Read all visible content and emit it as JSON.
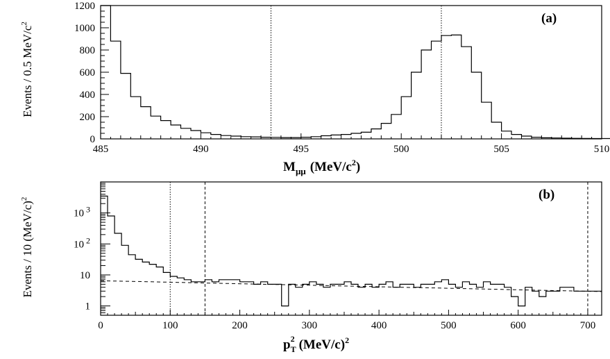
{
  "chart_data": [
    {
      "panel": "(a)",
      "type": "histogram",
      "xlabel": "M_μμ (MeV/c²)",
      "xlabel_main": "M",
      "xlabel_sub": "μμ",
      "xlabel_unit": "(MeV/c",
      "xlabel_sup": "2",
      "xlabel_close": ")",
      "ylabel": "Events / 0.5 MeV/c²",
      "ylabel_main": "Events / 0.5 MeV/c",
      "ylabel_sup": "2",
      "xlim": [
        485,
        510
      ],
      "ylim": [
        0,
        1200
      ],
      "xticks": [
        "485",
        "490",
        "495",
        "500",
        "505",
        "510"
      ],
      "yticks": [
        "0",
        "200",
        "400",
        "600",
        "800",
        "1000",
        "1200"
      ],
      "bin_width": 0.5,
      "bin_start": 485,
      "values": [
        1200,
        880,
        590,
        380,
        290,
        205,
        165,
        125,
        95,
        75,
        55,
        40,
        30,
        25,
        20,
        18,
        15,
        14,
        12,
        12,
        15,
        20,
        28,
        35,
        40,
        50,
        60,
        90,
        140,
        220,
        380,
        600,
        800,
        880,
        930,
        935,
        830,
        600,
        330,
        150,
        70,
        40,
        25,
        15,
        10,
        8,
        6,
        5,
        4,
        3,
        3,
        2,
        2,
        2,
        2,
        1,
        1,
        1,
        1,
        1,
        1,
        1,
        1,
        1,
        1,
        1,
        1,
        1,
        1,
        1
      ],
      "cut_lines": [
        493.5,
        502
      ],
      "cut_style": "dotted"
    },
    {
      "panel": "(b)",
      "type": "histogram",
      "scale": "log",
      "xlabel": "p_T² (MeV/c)²",
      "xlabel_main": "p",
      "xlabel_sub": "T",
      "xlabel_sup": "2",
      "xlabel_unit": "(MeV/c)",
      "xlabel_unit_sup": "2",
      "ylabel": "Events / 10 (MeV/c)²",
      "ylabel_main": "Events / 10 (MeV/c)",
      "ylabel_sup": "2",
      "xlim": [
        0,
        720
      ],
      "ylim": [
        0.5,
        10000
      ],
      "xticks": [
        "0",
        "100",
        "200",
        "300",
        "400",
        "500",
        "600",
        "700"
      ],
      "xtick_values": [
        0,
        100,
        200,
        300,
        400,
        500,
        600,
        700
      ],
      "ytick_labels": [
        {
          "base": "10",
          "exp": "3",
          "value": 1000
        },
        {
          "base": "10",
          "exp": "2",
          "value": 100
        },
        {
          "base": "10",
          "exp": "",
          "value": 10
        },
        {
          "base": "1",
          "exp": "",
          "value": 1
        }
      ],
      "bin_width": 10,
      "bin_start": 0,
      "values": [
        3500,
        800,
        220,
        90,
        45,
        32,
        26,
        22,
        18,
        12,
        9,
        8,
        7,
        6,
        6,
        7,
        6,
        7,
        7,
        7,
        6,
        6,
        5,
        6,
        5,
        5,
        1,
        5,
        4,
        5,
        6,
        5,
        4,
        5,
        5,
        6,
        5,
        4,
        5,
        4,
        5,
        6,
        4,
        5,
        5,
        4,
        5,
        5,
        6,
        7,
        5,
        4,
        6,
        5,
        4,
        6,
        5,
        5,
        4,
        2,
        1,
        4,
        3,
        2,
        3,
        3,
        4,
        4,
        3,
        3,
        3,
        3
      ],
      "fit": {
        "style": "dashed",
        "y0": 6.5,
        "y1": 2.9
      },
      "cut_lines": [
        {
          "x": 100,
          "style": "dotted"
        },
        {
          "x": 150,
          "style": "dashed"
        },
        {
          "x": 700,
          "style": "dashed"
        }
      ]
    }
  ]
}
